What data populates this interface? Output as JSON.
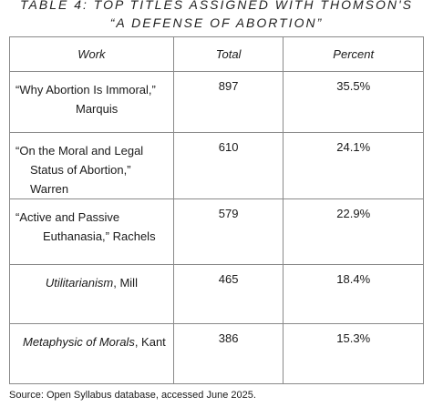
{
  "table": {
    "title_line_1": "TABLE 4: TOP TITLES ASSIGNED WITH THOMSON'S",
    "title_line_2": "“A DEFENSE OF ABORTION”",
    "headers": {
      "work": "Work",
      "total": "Total",
      "percent": "Percent"
    },
    "rows": [
      {
        "work_line_1": "“Why Abortion Is Immoral,”",
        "work_line_2": "Marquis",
        "total": "897",
        "percent": "35.5%"
      },
      {
        "work_line_1": "“On the Moral and Legal",
        "work_line_2": "Status of Abortion,” Warren",
        "total": "610",
        "percent": "24.1%"
      },
      {
        "work_line_1": "“Active and Passive",
        "work_line_2": "Euthanasia,” Rachels",
        "total": "579",
        "percent": "22.9%"
      },
      {
        "work_italic": "Utilitarianism",
        "work_rest": ", Mill",
        "total": "465",
        "percent": "18.4%"
      },
      {
        "work_italic": "Metaphysic of Morals",
        "work_rest": ", Kant",
        "total": "386",
        "percent": "15.3%"
      }
    ]
  },
  "source_note": "Source: Open Syllabus database, accessed June 2025."
}
